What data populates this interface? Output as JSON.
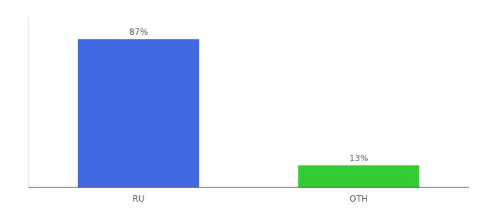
{
  "chart_data": {
    "type": "bar",
    "categories": [
      "RU",
      "OTH"
    ],
    "values": [
      87,
      13
    ],
    "value_labels": [
      "87%",
      "13%"
    ],
    "colors": [
      "#4169e1",
      "#33cc33"
    ],
    "ylim": [
      0,
      100
    ],
    "data_labels": true,
    "tick_labels": "x"
  }
}
